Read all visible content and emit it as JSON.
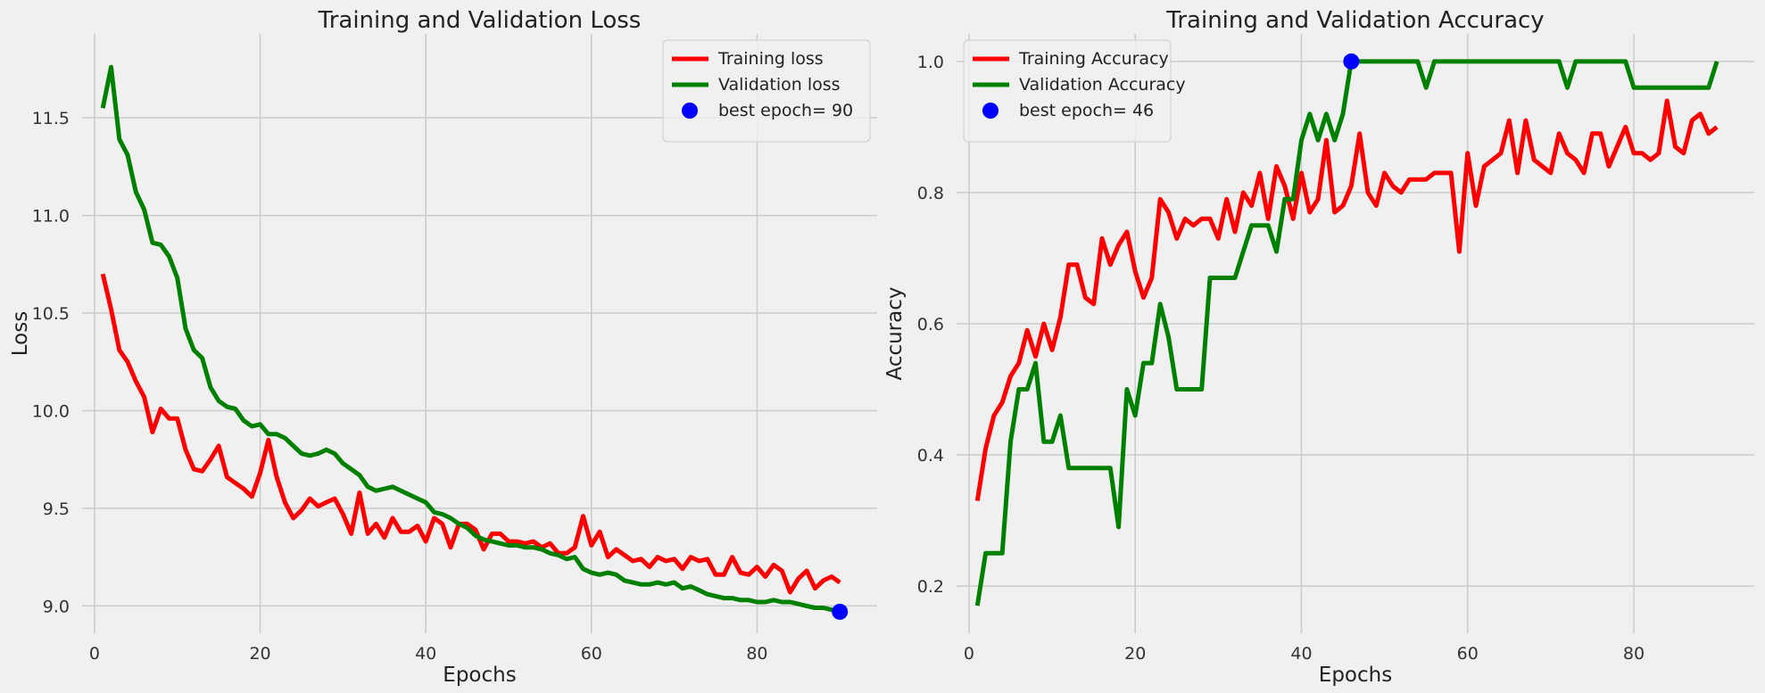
{
  "chart_data": [
    {
      "type": "line",
      "title": "Training and Validation Loss",
      "xlabel": "Epochs",
      "ylabel": "Loss",
      "xlim": [
        -1.5,
        94.5
      ],
      "ylim": [
        8.86,
        11.93
      ],
      "xticks": [
        0,
        20,
        40,
        60,
        80
      ],
      "yticks": [
        9.0,
        9.5,
        10.0,
        10.5,
        11.0,
        11.5
      ],
      "ytick_labels": [
        "9.0",
        "9.5",
        "10.0",
        "10.5",
        "11.0",
        "11.5"
      ],
      "grid": true,
      "legend_position": "top-right",
      "x": [
        1,
        2,
        3,
        4,
        5,
        6,
        7,
        8,
        9,
        10,
        11,
        12,
        13,
        14,
        15,
        16,
        17,
        18,
        19,
        20,
        21,
        22,
        23,
        24,
        25,
        26,
        27,
        28,
        29,
        30,
        31,
        32,
        33,
        34,
        35,
        36,
        37,
        38,
        39,
        40,
        41,
        42,
        43,
        44,
        45,
        46,
        47,
        48,
        49,
        50,
        51,
        52,
        53,
        54,
        55,
        56,
        57,
        58,
        59,
        60,
        61,
        62,
        63,
        64,
        65,
        66,
        67,
        68,
        69,
        70,
        71,
        72,
        73,
        74,
        75,
        76,
        77,
        78,
        79,
        80,
        81,
        82,
        83,
        84,
        85,
        86,
        87,
        88,
        89,
        90
      ],
      "series": [
        {
          "name": "Training loss",
          "color": "#ff0000",
          "values": [
            10.7,
            10.52,
            10.31,
            10.25,
            10.15,
            10.07,
            9.89,
            10.01,
            9.96,
            9.96,
            9.8,
            9.7,
            9.69,
            9.75,
            9.82,
            9.66,
            9.63,
            9.6,
            9.56,
            9.68,
            9.85,
            9.66,
            9.53,
            9.45,
            9.49,
            9.55,
            9.51,
            9.53,
            9.55,
            9.47,
            9.37,
            9.58,
            9.37,
            9.42,
            9.35,
            9.45,
            9.38,
            9.38,
            9.41,
            9.33,
            9.45,
            9.42,
            9.3,
            9.42,
            9.42,
            9.39,
            9.29,
            9.37,
            9.37,
            9.33,
            9.33,
            9.32,
            9.33,
            9.3,
            9.32,
            9.27,
            9.27,
            9.3,
            9.46,
            9.31,
            9.38,
            9.25,
            9.29,
            9.26,
            9.23,
            9.24,
            9.2,
            9.25,
            9.23,
            9.24,
            9.19,
            9.25,
            9.23,
            9.24,
            9.16,
            9.16,
            9.25,
            9.17,
            9.16,
            9.2,
            9.15,
            9.21,
            9.18,
            9.07,
            9.14,
            9.18,
            9.09,
            9.13,
            9.15,
            9.12
          ]
        },
        {
          "name": "Validation loss",
          "color": "#008000",
          "values": [
            11.55,
            11.76,
            11.39,
            11.31,
            11.12,
            11.03,
            10.86,
            10.85,
            10.79,
            10.68,
            10.42,
            10.31,
            10.27,
            10.12,
            10.05,
            10.02,
            10.01,
            9.95,
            9.92,
            9.93,
            9.88,
            9.88,
            9.86,
            9.82,
            9.78,
            9.77,
            9.78,
            9.8,
            9.78,
            9.73,
            9.7,
            9.67,
            9.61,
            9.59,
            9.6,
            9.61,
            9.59,
            9.57,
            9.55,
            9.53,
            9.48,
            9.47,
            9.45,
            9.42,
            9.4,
            9.36,
            9.34,
            9.33,
            9.32,
            9.31,
            9.31,
            9.3,
            9.3,
            9.29,
            9.27,
            9.26,
            9.24,
            9.25,
            9.19,
            9.17,
            9.16,
            9.17,
            9.16,
            9.13,
            9.12,
            9.11,
            9.11,
            9.12,
            9.11,
            9.12,
            9.09,
            9.1,
            9.08,
            9.06,
            9.05,
            9.04,
            9.04,
            9.03,
            9.03,
            9.02,
            9.02,
            9.03,
            9.02,
            9.02,
            9.01,
            9.0,
            8.99,
            8.99,
            8.98,
            8.97
          ]
        }
      ],
      "best_point": {
        "label": "best epoch= 90",
        "x": 90,
        "y": 8.97,
        "color": "#0000ff"
      }
    },
    {
      "type": "line",
      "title": "Training and Validation Accuracy",
      "xlabel": "Epochs",
      "ylabel": "Accuracy",
      "xlim": [
        -1.5,
        94.5
      ],
      "ylim": [
        0.128,
        1.042
      ],
      "xticks": [
        0,
        20,
        40,
        60,
        80
      ],
      "yticks": [
        0.2,
        0.4,
        0.6,
        0.8,
        1.0
      ],
      "ytick_labels": [
        "0.2",
        "0.4",
        "0.6",
        "0.8",
        "1.0"
      ],
      "grid": true,
      "legend_position": "top-left",
      "x": [
        1,
        2,
        3,
        4,
        5,
        6,
        7,
        8,
        9,
        10,
        11,
        12,
        13,
        14,
        15,
        16,
        17,
        18,
        19,
        20,
        21,
        22,
        23,
        24,
        25,
        26,
        27,
        28,
        29,
        30,
        31,
        32,
        33,
        34,
        35,
        36,
        37,
        38,
        39,
        40,
        41,
        42,
        43,
        44,
        45,
        46,
        47,
        48,
        49,
        50,
        51,
        52,
        53,
        54,
        55,
        56,
        57,
        58,
        59,
        60,
        61,
        62,
        63,
        64,
        65,
        66,
        67,
        68,
        69,
        70,
        71,
        72,
        73,
        74,
        75,
        76,
        77,
        78,
        79,
        80,
        81,
        82,
        83,
        84,
        85,
        86,
        87,
        88,
        89,
        90
      ],
      "series": [
        {
          "name": "Training Accuracy",
          "color": "#ff0000",
          "values": [
            0.33,
            0.41,
            0.46,
            0.48,
            0.52,
            0.54,
            0.59,
            0.55,
            0.6,
            0.56,
            0.61,
            0.69,
            0.69,
            0.64,
            0.63,
            0.73,
            0.69,
            0.72,
            0.74,
            0.68,
            0.64,
            0.67,
            0.79,
            0.77,
            0.73,
            0.76,
            0.75,
            0.76,
            0.76,
            0.73,
            0.79,
            0.74,
            0.8,
            0.78,
            0.83,
            0.76,
            0.84,
            0.81,
            0.76,
            0.83,
            0.77,
            0.79,
            0.88,
            0.77,
            0.78,
            0.81,
            0.89,
            0.8,
            0.78,
            0.83,
            0.81,
            0.8,
            0.82,
            0.82,
            0.82,
            0.83,
            0.83,
            0.83,
            0.71,
            0.86,
            0.78,
            0.84,
            0.85,
            0.86,
            0.91,
            0.83,
            0.91,
            0.85,
            0.84,
            0.83,
            0.89,
            0.86,
            0.85,
            0.83,
            0.89,
            0.89,
            0.84,
            0.87,
            0.9,
            0.86,
            0.86,
            0.85,
            0.86,
            0.94,
            0.87,
            0.86,
            0.91,
            0.92,
            0.89,
            0.9
          ]
        },
        {
          "name": "Validation Accuracy",
          "color": "#008000",
          "values": [
            0.17,
            0.25,
            0.25,
            0.25,
            0.42,
            0.5,
            0.5,
            0.54,
            0.42,
            0.42,
            0.46,
            0.38,
            0.38,
            0.38,
            0.38,
            0.38,
            0.38,
            0.29,
            0.5,
            0.46,
            0.54,
            0.54,
            0.63,
            0.58,
            0.5,
            0.5,
            0.5,
            0.5,
            0.67,
            0.67,
            0.67,
            0.67,
            0.71,
            0.75,
            0.75,
            0.75,
            0.71,
            0.79,
            0.79,
            0.88,
            0.92,
            0.88,
            0.92,
            0.88,
            0.92,
            1.0,
            1.0,
            1.0,
            1.0,
            1.0,
            1.0,
            1.0,
            1.0,
            1.0,
            0.96,
            1.0,
            1.0,
            1.0,
            1.0,
            1.0,
            1.0,
            1.0,
            1.0,
            1.0,
            1.0,
            1.0,
            1.0,
            1.0,
            1.0,
            1.0,
            1.0,
            0.96,
            1.0,
            1.0,
            1.0,
            1.0,
            1.0,
            1.0,
            1.0,
            0.96,
            0.96,
            0.96,
            0.96,
            0.96,
            0.96,
            0.96,
            0.96,
            0.96,
            0.96,
            1.0
          ]
        }
      ],
      "best_point": {
        "label": "best epoch= 46",
        "x": 46,
        "y": 1.0,
        "color": "#0000ff"
      }
    }
  ]
}
